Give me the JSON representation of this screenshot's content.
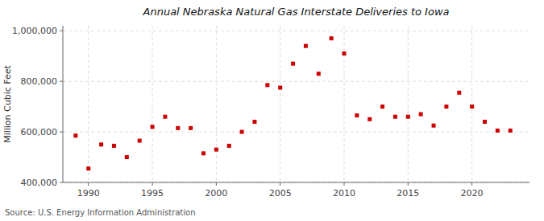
{
  "chart_data": {
    "type": "scatter",
    "title": "Annual Nebraska Natural Gas Interstate Deliveries to Iowa",
    "y_label": "Million Cubic Feet",
    "annotation": "Source: U.S. Energy Information Administration",
    "x": [
      1989,
      1990,
      1991,
      1992,
      1993,
      1994,
      1995,
      1996,
      1997,
      1998,
      1999,
      2000,
      2001,
      2002,
      2003,
      2004,
      2005,
      2006,
      2007,
      2008,
      2009,
      2010,
      2011,
      2012,
      2013,
      2014,
      2015,
      2016,
      2017,
      2018,
      2019,
      2020,
      2021,
      2022,
      2023
    ],
    "values": [
      585000,
      455000,
      550000,
      545000,
      500000,
      565000,
      620000,
      660000,
      615000,
      615000,
      515000,
      530000,
      545000,
      600000,
      640000,
      785000,
      775000,
      870000,
      940000,
      830000,
      970000,
      910000,
      665000,
      650000,
      700000,
      660000,
      660000,
      670000,
      625000,
      700000,
      755000,
      700000,
      640000,
      605000,
      605000
    ],
    "color": "#cc0000",
    "marker": "square",
    "xlim": [
      1988.0,
      2024.5
    ],
    "ylim": [
      400000,
      1020000
    ],
    "xticks": [
      1990,
      1995,
      2000,
      2005,
      2010,
      2015,
      2020
    ],
    "yticks": [
      {
        "value": 400000,
        "label": "400,000"
      },
      {
        "value": 600000,
        "label": "600,000"
      },
      {
        "value": 800000,
        "label": "800,000"
      },
      {
        "value": 1000000,
        "label": "1,000,000"
      }
    ],
    "grid": true
  }
}
